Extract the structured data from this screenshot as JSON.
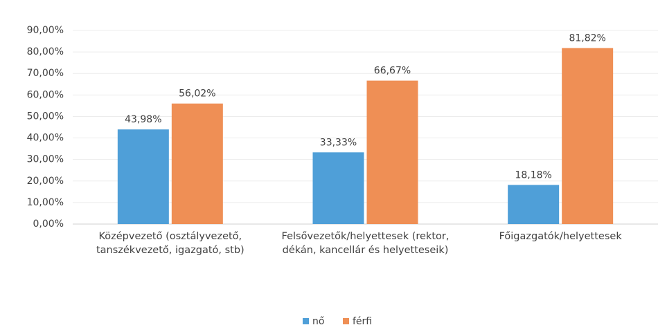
{
  "chart_data": {
    "type": "bar",
    "categories": [
      "Középvezető (osztályvezető, tanszékvezető, igazgató, stb)",
      "Felsővezetők/helyettesek (rektor, dékán, kancellár és helyetteseik)",
      "Főigazgatók/helyettesek"
    ],
    "series": [
      {
        "name": "nő",
        "color": "#4f9fd8",
        "values": [
          43.98,
          33.33,
          18.18
        ],
        "value_labels": [
          "43,98%",
          "33,33%",
          "18,18%"
        ]
      },
      {
        "name": "férfi",
        "color": "#ef8f55",
        "values": [
          56.02,
          66.67,
          81.82
        ],
        "value_labels": [
          "56,02%",
          "66,67%",
          "81,82%"
        ]
      }
    ],
    "ylim": [
      0,
      90
    ],
    "yticks": [
      {
        "value": 0,
        "label": "0,00%"
      },
      {
        "value": 10,
        "label": "10,00%"
      },
      {
        "value": 20,
        "label": "20,00%"
      },
      {
        "value": 30,
        "label": "30,00%"
      },
      {
        "value": 40,
        "label": "40,00%"
      },
      {
        "value": 50,
        "label": "50,00%"
      },
      {
        "value": 60,
        "label": "60,00%"
      },
      {
        "value": 70,
        "label": "70,00%"
      },
      {
        "value": 80,
        "label": "80,00%"
      },
      {
        "value": 90,
        "label": "90,00%"
      }
    ],
    "grid": true,
    "legend": "bottom"
  }
}
